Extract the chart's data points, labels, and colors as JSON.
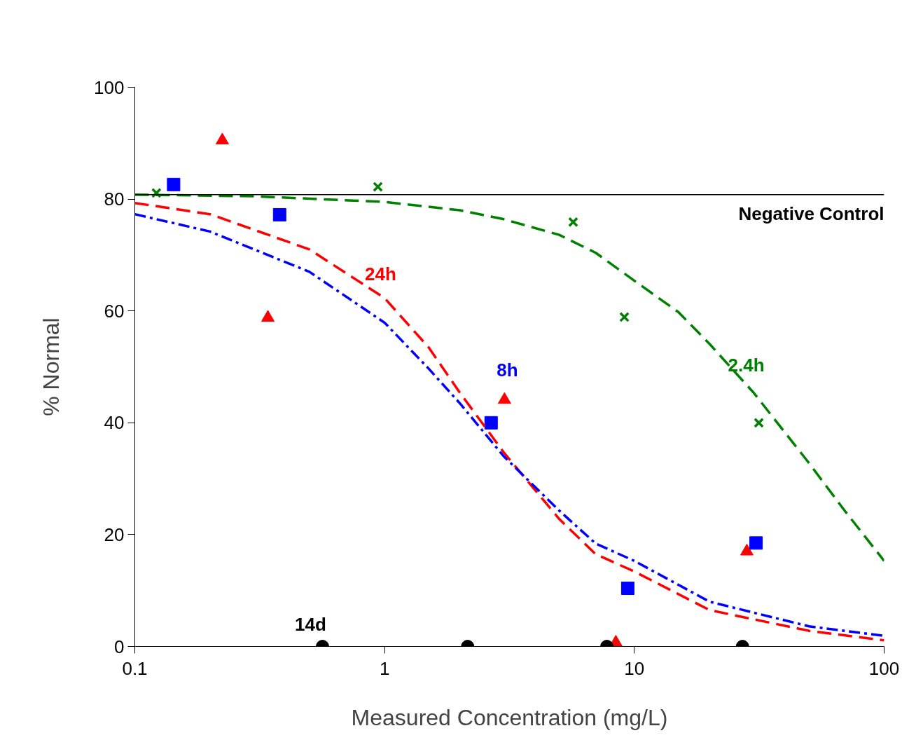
{
  "chart_data": {
    "type": "scatter",
    "xlabel": "Measured Concentration (mg/L)",
    "ylabel": "% Normal",
    "log": "x",
    "xlim": [
      0.1,
      100
    ],
    "ylim": [
      0,
      100
    ],
    "xticks": [
      0.1,
      1,
      10,
      100
    ],
    "yticks": [
      0,
      20,
      40,
      60,
      80,
      100
    ],
    "grid": false,
    "series": [
      {
        "name": "24h",
        "color": "#ff0000",
        "marker": "triangle",
        "x": [
          0.224,
          0.341,
          3.02,
          8.43,
          28.2
        ],
        "values": [
          90.5,
          58.8,
          44.1,
          0.7,
          17.0
        ]
      },
      {
        "name": "8h",
        "color": "#0000ff",
        "marker": "square",
        "x": [
          0.143,
          0.38,
          2.67,
          9.41,
          30.7
        ],
        "values": [
          82.6,
          77.2,
          40.0,
          10.4,
          18.5
        ]
      },
      {
        "name": "2.4h",
        "color": "#008000",
        "marker": "cross",
        "x": [
          0.122,
          0.94,
          5.69,
          9.12,
          31.5
        ],
        "values": [
          81.1,
          82.2,
          75.9,
          58.9,
          40.0
        ]
      },
      {
        "name": "14d",
        "color": "#000000",
        "marker": "circle",
        "x": [
          0.564,
          2.15,
          7.76,
          27.1
        ],
        "values": [
          0,
          0,
          0,
          0
        ]
      },
      {
        "type": "line",
        "color": "#ff0000",
        "line_style": "dashed",
        "x": [
          0.1,
          0.2,
          0.5,
          1,
          1.5,
          2,
          3,
          5,
          7,
          10,
          20,
          50,
          100
        ],
        "values": [
          79.3,
          77.3,
          71,
          62.3,
          53.5,
          45.4,
          34.7,
          22.8,
          16.5,
          13.4,
          6.5,
          2.8,
          1.1
        ]
      },
      {
        "type": "line",
        "color": "#0000ff",
        "line_style": "dashdot",
        "x": [
          0.1,
          0.2,
          0.5,
          1,
          1.5,
          2,
          3,
          5,
          7,
          10,
          20,
          50,
          100
        ],
        "values": [
          77.3,
          74.2,
          67,
          57.9,
          49.7,
          43.5,
          34,
          24.3,
          18.4,
          15.3,
          8,
          3.6,
          1.9
        ]
      },
      {
        "type": "line",
        "color": "#008000",
        "line_style": "dashed",
        "x": [
          0.1,
          0.3,
          1,
          2,
          3,
          5,
          7,
          10,
          15,
          20,
          30,
          50,
          70,
          100
        ],
        "values": [
          80.8,
          80.5,
          79.5,
          78,
          76.4,
          73.6,
          70.4,
          65.4,
          59.8,
          54.1,
          45.4,
          32.8,
          24.1,
          15.3
        ]
      }
    ],
    "ref_lines": [
      {
        "axis": "y",
        "value": 80.8,
        "label": "Negative Control",
        "color": "#000000",
        "line_style": "solid"
      }
    ]
  }
}
